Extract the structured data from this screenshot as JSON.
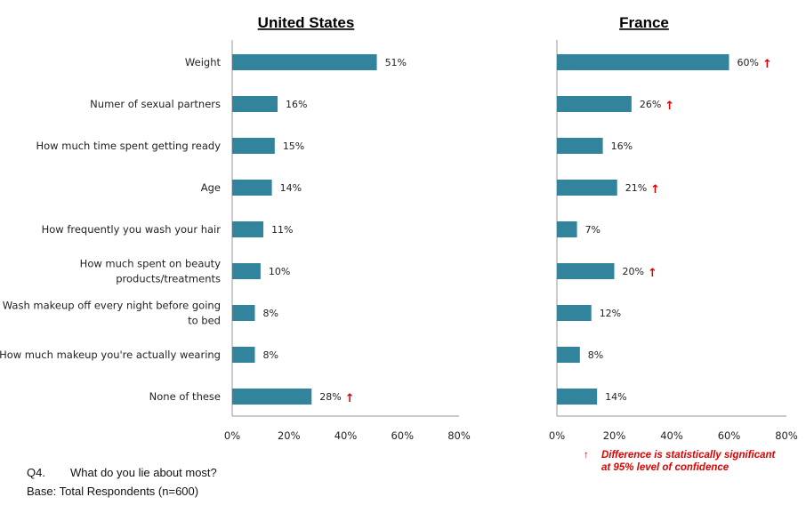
{
  "chart_data": {
    "type": "bar",
    "orientation": "horizontal",
    "categories": [
      [
        "Weight"
      ],
      [
        "Numer of sexual partners"
      ],
      [
        "How much time spent getting ready"
      ],
      [
        "Age"
      ],
      [
        "How frequently you wash your hair"
      ],
      [
        "How much spent on beauty",
        "products/treatments"
      ],
      [
        "Wash makeup off every night before going",
        "to bed"
      ],
      [
        "How much makeup you're actually wearing"
      ],
      [
        "None of these"
      ]
    ],
    "xlim": [
      0,
      80
    ],
    "xticks": [
      "0%",
      "20%",
      "40%",
      "60%",
      "80%"
    ],
    "bar_color": "#31849B",
    "significance_color": "#e00000",
    "panels": [
      {
        "title": "United States",
        "values": [
          51,
          16,
          15,
          14,
          11,
          10,
          8,
          8,
          28
        ],
        "value_labels": [
          "51%",
          "16%",
          "15%",
          "14%",
          "11%",
          "10%",
          "8%",
          "8%",
          "28%"
        ],
        "significant": [
          false,
          false,
          false,
          false,
          false,
          false,
          false,
          false,
          true
        ]
      },
      {
        "title": "France",
        "values": [
          60,
          26,
          16,
          21,
          7,
          20,
          12,
          8,
          14
        ],
        "value_labels": [
          "60%",
          "26%",
          "16%",
          "21%",
          "7%",
          "20%",
          "12%",
          "8%",
          "14%"
        ],
        "significant": [
          true,
          true,
          false,
          true,
          false,
          true,
          false,
          false,
          false
        ]
      }
    ]
  },
  "legend": {
    "arrow": "↑",
    "text_line1": "Difference is statistically significant",
    "text_line2": "at 95% level of confidence"
  },
  "footer": {
    "q_label": "Q4.",
    "question": "What do you lie about most?",
    "base": "Base:  Total Respondents (n=600)"
  }
}
